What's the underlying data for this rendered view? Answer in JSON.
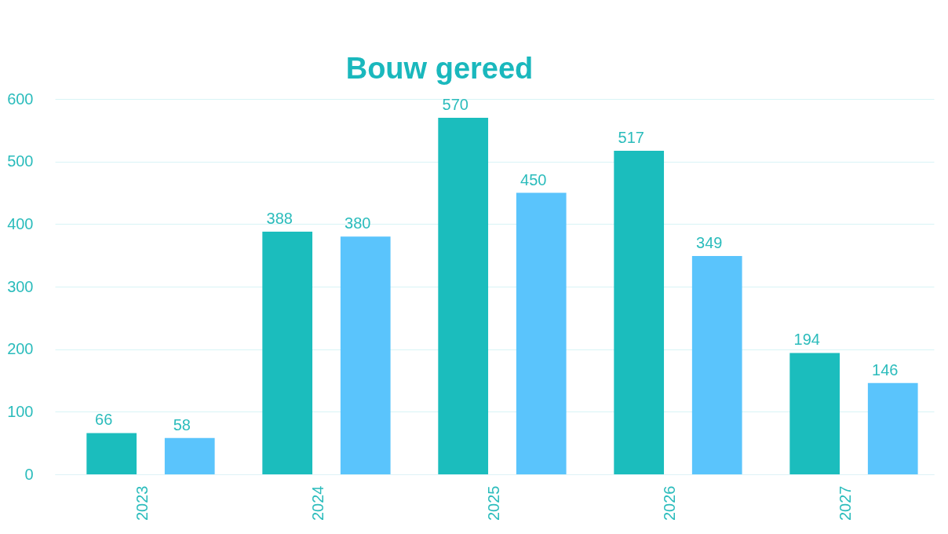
{
  "chart_data": {
    "type": "bar",
    "title": "Bouw gereed",
    "categories": [
      "2023",
      "2024",
      "2025",
      "2026",
      "2027"
    ],
    "series": [
      {
        "color": "#1bbdbd",
        "values": [
          66,
          388,
          570,
          517,
          194
        ]
      },
      {
        "color": "#5ac4fc",
        "values": [
          58,
          380,
          450,
          349,
          146
        ]
      }
    ],
    "ylim": [
      0,
      600
    ],
    "yticks": [
      0,
      100,
      200,
      300,
      400,
      500,
      600
    ],
    "grid": "y",
    "data_labels": true
  }
}
